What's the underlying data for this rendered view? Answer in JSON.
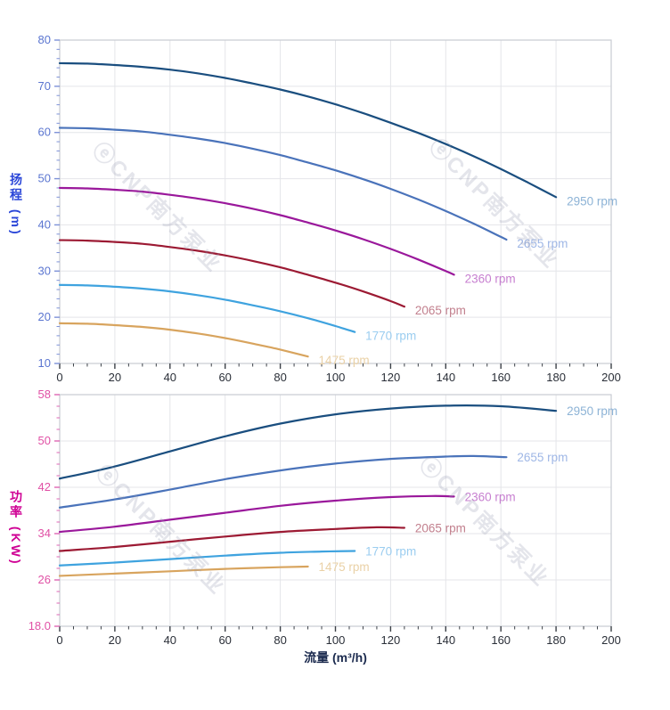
{
  "watermark": {
    "text": "ⓔCNP南方泵业"
  },
  "chart_data": [
    {
      "type": "line",
      "title": "",
      "xlabel": "流量 (m³/h)",
      "ylabel": "扬程 (m)",
      "xlim": [
        0,
        200
      ],
      "ylim": [
        10,
        80
      ],
      "x_major": 20,
      "x_minor": 5,
      "y_major": 10,
      "y_minor": 2,
      "grid": true,
      "legend_position": "at-line-ends",
      "x_ticks": [
        "0",
        "20",
        "40",
        "60",
        "80",
        "100",
        "120",
        "140",
        "160",
        "180",
        "200"
      ],
      "y_ticks": [
        "10",
        "20",
        "30",
        "40",
        "50",
        "60",
        "70",
        "80"
      ],
      "colors": {
        "grid": "#e4e5e9",
        "border": "#c8cbd3",
        "x_tick": "#3c4148",
        "y_tick": "#7e92d8",
        "x_tick_label": "#2a2f38",
        "y_tick_label": "#5a75d0"
      },
      "series": [
        {
          "name": "2950 rpm",
          "color": "#1a4e7f",
          "label_color": "#8db3d6",
          "points": [
            [
              0,
              75
            ],
            [
              10,
              74.9
            ],
            [
              20,
              74.6
            ],
            [
              30,
              74.2
            ],
            [
              40,
              73.6
            ],
            [
              50,
              72.8
            ],
            [
              60,
              71.8
            ],
            [
              70,
              70.6
            ],
            [
              80,
              69.3
            ],
            [
              90,
              67.8
            ],
            [
              100,
              66.1
            ],
            [
              110,
              64.2
            ],
            [
              120,
              62.1
            ],
            [
              130,
              59.9
            ],
            [
              140,
              57.5
            ],
            [
              150,
              54.9
            ],
            [
              160,
              52.1
            ],
            [
              170,
              49.1
            ],
            [
              180,
              46
            ]
          ]
        },
        {
          "name": "2655 rpm",
          "color": "#4a73ba",
          "label_color": "#9fb7e6",
          "points": [
            [
              0,
              61
            ],
            [
              10,
              60.9
            ],
            [
              20,
              60.6
            ],
            [
              30,
              60.2
            ],
            [
              40,
              59.5
            ],
            [
              50,
              58.7
            ],
            [
              60,
              57.7
            ],
            [
              70,
              56.5
            ],
            [
              80,
              55.1
            ],
            [
              90,
              53.5
            ],
            [
              100,
              51.8
            ],
            [
              110,
              49.9
            ],
            [
              120,
              47.8
            ],
            [
              130,
              45.5
            ],
            [
              140,
              43
            ],
            [
              150,
              40.3
            ],
            [
              160,
              37.4
            ],
            [
              162,
              36.8
            ]
          ]
        },
        {
          "name": "2360 rpm",
          "color": "#9a189b",
          "label_color": "#c77fd0",
          "points": [
            [
              0,
              48
            ],
            [
              10,
              47.9
            ],
            [
              20,
              47.6
            ],
            [
              30,
              47.2
            ],
            [
              40,
              46.5
            ],
            [
              50,
              45.7
            ],
            [
              60,
              44.7
            ],
            [
              70,
              43.5
            ],
            [
              80,
              42.1
            ],
            [
              90,
              40.5
            ],
            [
              100,
              38.8
            ],
            [
              110,
              36.9
            ],
            [
              120,
              34.8
            ],
            [
              130,
              32.5
            ],
            [
              140,
              30
            ],
            [
              143,
              29.2
            ]
          ]
        },
        {
          "name": "2065 rpm",
          "color": "#9c1a33",
          "label_color": "#c2808e",
          "points": [
            [
              0,
              36.7
            ],
            [
              10,
              36.6
            ],
            [
              20,
              36.3
            ],
            [
              30,
              35.9
            ],
            [
              40,
              35.2
            ],
            [
              50,
              34.4
            ],
            [
              60,
              33.4
            ],
            [
              70,
              32.2
            ],
            [
              80,
              30.8
            ],
            [
              90,
              29.2
            ],
            [
              100,
              27.5
            ],
            [
              110,
              25.6
            ],
            [
              120,
              23.5
            ],
            [
              125,
              22.3
            ]
          ]
        },
        {
          "name": "1770 rpm",
          "color": "#3fa3df",
          "label_color": "#9bcdf0",
          "points": [
            [
              0,
              27
            ],
            [
              10,
              26.9
            ],
            [
              20,
              26.6
            ],
            [
              30,
              26.2
            ],
            [
              40,
              25.6
            ],
            [
              50,
              24.8
            ],
            [
              60,
              23.8
            ],
            [
              70,
              22.6
            ],
            [
              80,
              21.3
            ],
            [
              90,
              19.8
            ],
            [
              100,
              18.1
            ],
            [
              107,
              16.8
            ]
          ]
        },
        {
          "name": "1475 rpm",
          "color": "#d8a45e",
          "label_color": "#ead1a6",
          "points": [
            [
              0,
              18.7
            ],
            [
              10,
              18.6
            ],
            [
              20,
              18.3
            ],
            [
              30,
              17.9
            ],
            [
              40,
              17.3
            ],
            [
              50,
              16.5
            ],
            [
              60,
              15.5
            ],
            [
              70,
              14.3
            ],
            [
              80,
              13
            ],
            [
              90,
              11.5
            ]
          ]
        }
      ]
    },
    {
      "type": "line",
      "title": "",
      "xlabel": "流量 (m³/h)",
      "ylabel": "功率 (KW)",
      "xlim": [
        0,
        200
      ],
      "ylim": [
        18,
        58
      ],
      "x_major": 20,
      "x_minor": 5,
      "y_major": 8,
      "y_minor": 2,
      "grid": true,
      "legend_position": "at-line-ends",
      "x_ticks": [
        "0",
        "20",
        "40",
        "60",
        "80",
        "100",
        "120",
        "140",
        "160",
        "180",
        "200"
      ],
      "y_ticks": [
        "18.0",
        "26",
        "34",
        "42",
        "50",
        "58"
      ],
      "colors": {
        "grid": "#e4e5e9",
        "border": "#c8cbd3",
        "x_tick": "#3c4148",
        "y_tick": "#de66b4",
        "x_tick_label": "#2a2f38",
        "y_tick_label": "#e050a5"
      },
      "series": [
        {
          "name": "2950 rpm",
          "color": "#1a4e7f",
          "label_color": "#8db3d6",
          "points": [
            [
              0,
              43.5
            ],
            [
              20,
              45.6
            ],
            [
              40,
              48.2
            ],
            [
              60,
              50.8
            ],
            [
              80,
              53
            ],
            [
              100,
              54.6
            ],
            [
              120,
              55.6
            ],
            [
              140,
              56.1
            ],
            [
              160,
              56
            ],
            [
              180,
              55.2
            ]
          ]
        },
        {
          "name": "2655 rpm",
          "color": "#4a73ba",
          "label_color": "#9fb7e6",
          "points": [
            [
              0,
              38.5
            ],
            [
              20,
              39.9
            ],
            [
              40,
              41.6
            ],
            [
              60,
              43.4
            ],
            [
              80,
              44.9
            ],
            [
              100,
              46.1
            ],
            [
              120,
              46.9
            ],
            [
              140,
              47.3
            ],
            [
              150,
              47.4
            ],
            [
              162,
              47.2
            ]
          ]
        },
        {
          "name": "2360 rpm",
          "color": "#9a189b",
          "label_color": "#c77fd0",
          "points": [
            [
              0,
              34.3
            ],
            [
              20,
              35.2
            ],
            [
              40,
              36.4
            ],
            [
              60,
              37.6
            ],
            [
              80,
              38.8
            ],
            [
              100,
              39.7
            ],
            [
              120,
              40.3
            ],
            [
              135,
              40.5
            ],
            [
              143,
              40.4
            ]
          ]
        },
        {
          "name": "2065 rpm",
          "color": "#9c1a33",
          "label_color": "#c2808e",
          "points": [
            [
              0,
              31
            ],
            [
              20,
              31.7
            ],
            [
              40,
              32.6
            ],
            [
              60,
              33.5
            ],
            [
              80,
              34.3
            ],
            [
              100,
              34.8
            ],
            [
              115,
              35.1
            ],
            [
              125,
              35
            ]
          ]
        },
        {
          "name": "1770 rpm",
          "color": "#3fa3df",
          "label_color": "#9bcdf0",
          "points": [
            [
              0,
              28.5
            ],
            [
              20,
              29
            ],
            [
              40,
              29.6
            ],
            [
              60,
              30.2
            ],
            [
              80,
              30.7
            ],
            [
              95,
              30.9
            ],
            [
              107,
              31
            ]
          ]
        },
        {
          "name": "1475 rpm",
          "color": "#d8a45e",
          "label_color": "#ead1a6",
          "points": [
            [
              0,
              26.7
            ],
            [
              20,
              27.1
            ],
            [
              40,
              27.5
            ],
            [
              60,
              27.9
            ],
            [
              80,
              28.2
            ],
            [
              90,
              28.3
            ]
          ]
        }
      ]
    }
  ]
}
